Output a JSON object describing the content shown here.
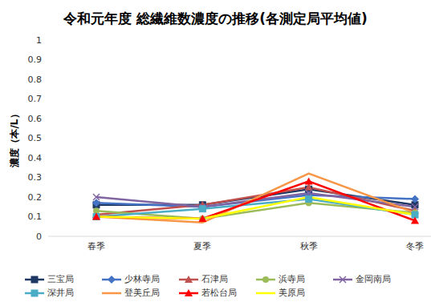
{
  "chart_data": {
    "type": "line",
    "title": "令和元年度 総繊維数濃度の推移(各測定局平均値)",
    "y_label": "濃度（本/L）",
    "categories": [
      "春季",
      "夏季",
      "秋季",
      "冬季"
    ],
    "ylim": [
      0,
      1
    ],
    "yticks": [
      0,
      0.1,
      0.2,
      0.3,
      0.4,
      0.5,
      0.6,
      0.7,
      0.8,
      0.9,
      1
    ],
    "grid": false,
    "legend": "bottom",
    "series": [
      {
        "name": "三宝局",
        "color": "#1f3864",
        "marker": "square",
        "values": [
          0.16,
          0.16,
          0.24,
          0.16
        ]
      },
      {
        "name": "少林寺局",
        "color": "#4472c4",
        "marker": "diamond",
        "values": [
          0.17,
          0.15,
          0.21,
          0.19
        ]
      },
      {
        "name": "石津局",
        "color": "#c0504d",
        "marker": "triangle",
        "values": [
          0.11,
          0.16,
          0.25,
          0.13
        ]
      },
      {
        "name": "浜寺局",
        "color": "#9bbb59",
        "marker": "circle",
        "values": [
          0.13,
          0.09,
          0.17,
          0.12
        ]
      },
      {
        "name": "金岡南局",
        "color": "#8064a2",
        "marker": "x",
        "values": [
          0.2,
          0.15,
          0.22,
          0.15
        ]
      },
      {
        "name": "深井局",
        "color": "#4bacc6",
        "marker": "square",
        "values": [
          0.1,
          0.14,
          0.19,
          0.11
        ]
      },
      {
        "name": "登美丘局",
        "color": "#f79646",
        "marker": "none",
        "values": [
          0.1,
          0.07,
          0.32,
          0.12
        ]
      },
      {
        "name": "若松台局",
        "color": "#ff0000",
        "marker": "triangle",
        "values": [
          0.1,
          0.09,
          0.28,
          0.08
        ]
      },
      {
        "name": "美原局",
        "color": "#ffff00",
        "marker": "none",
        "values": [
          0.1,
          0.09,
          0.2,
          0.11
        ]
      }
    ]
  }
}
